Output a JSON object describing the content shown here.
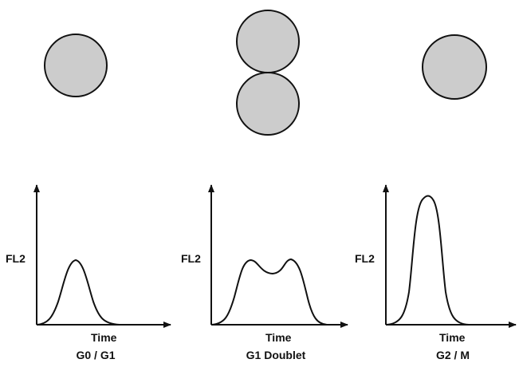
{
  "colors": {
    "cell_fill": "#cccccc",
    "stroke": "#111111",
    "background": "#ffffff"
  },
  "panels": [
    {
      "caption": "G0 / G1",
      "y_axis_label": "FL2",
      "x_axis_label": "Time",
      "cell_count": 1
    },
    {
      "caption": "G1 Doublet",
      "y_axis_label": "FL2",
      "x_axis_label": "Time",
      "cell_count": 2
    },
    {
      "caption": "G2 / M",
      "y_axis_label": "FL2",
      "x_axis_label": "Time",
      "cell_count": 1
    }
  ]
}
